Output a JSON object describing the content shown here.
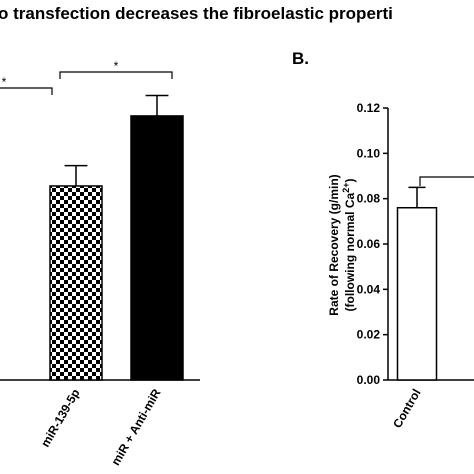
{
  "chart_data": [
    {
      "type": "bar",
      "title": "o transfection decreases the fibroelastic properti",
      "categories": [
        "miR-139-5p",
        "miR + Anti-miR"
      ],
      "values": [
        0.0856,
        0.1165
      ],
      "errors": [
        0.009,
        0.009
      ],
      "colors": [
        "#000000",
        "#000000"
      ],
      "patterns": [
        "checkered",
        "solid"
      ],
      "ylim": [
        0,
        0.12
      ],
      "annotations": [
        "*",
        "*"
      ]
    },
    {
      "type": "bar",
      "label": "B.",
      "y_label": [
        "Rate of Recovery (g/min)",
        "(following normal Ca",
        "2+",
        ")"
      ],
      "categories": [
        "Control"
      ],
      "values": [
        0.076
      ],
      "errors": [
        0.009
      ],
      "colors": [
        "#ffffff"
      ],
      "patterns": [
        "solid"
      ],
      "ylim": [
        0,
        0.12
      ],
      "yticks": [
        {
          "value": 0,
          "label": "0.00"
        },
        {
          "value": 0.02,
          "label": "0.02"
        },
        {
          "value": 0.04,
          "label": "0.04"
        },
        {
          "value": 0.06,
          "label": "0.06"
        },
        {
          "value": 0.08,
          "label": "0.08"
        },
        {
          "value": 0.1,
          "label": "0.10"
        },
        {
          "value": 0.12,
          "label": "0.12"
        }
      ]
    }
  ]
}
